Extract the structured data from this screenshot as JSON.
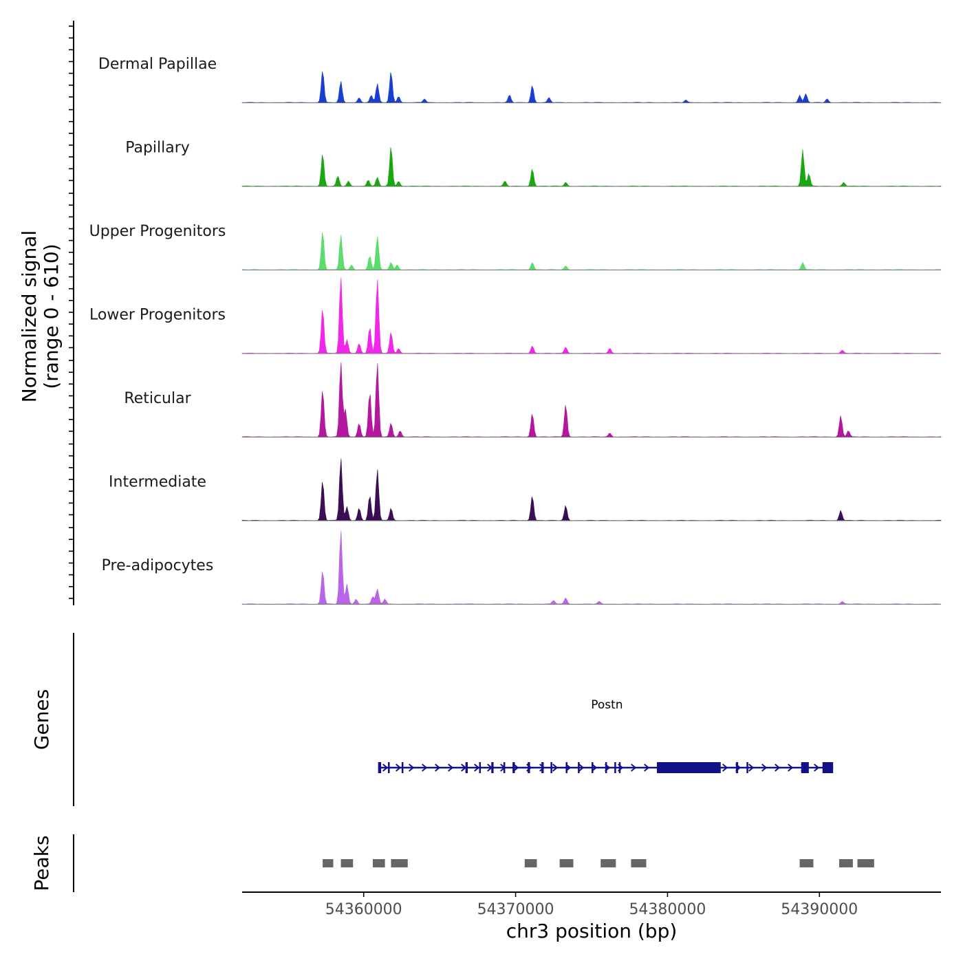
{
  "chart_data": {
    "type": "area",
    "title": "",
    "ylabel": "Normalized signal",
    "ylabel_range": "(range 0 - 610)",
    "ylim": [
      0,
      610
    ],
    "xlabel": "chr3 position (bp)",
    "xlim": [
      54352000,
      54398000
    ],
    "x_ticks": [
      54360000,
      54370000,
      54380000,
      54390000
    ],
    "x_tick_labels": [
      "54360000",
      "54370000",
      "54380000",
      "54390000"
    ],
    "genes_track_label": "Genes",
    "peaks_track_label": "Peaks",
    "series": [
      {
        "name": "Dermal Papillae",
        "color": "#1a3fcf",
        "peaks": [
          [
            54357300,
            260
          ],
          [
            54358500,
            170
          ],
          [
            54359700,
            40
          ],
          [
            54360500,
            60
          ],
          [
            54360900,
            150
          ],
          [
            54361800,
            250
          ],
          [
            54362300,
            50
          ],
          [
            54364000,
            30
          ],
          [
            54369600,
            60
          ],
          [
            54371100,
            140
          ],
          [
            54372200,
            40
          ],
          [
            54381200,
            20
          ],
          [
            54388700,
            60
          ],
          [
            54389100,
            70
          ],
          [
            54390500,
            30
          ]
        ]
      },
      {
        "name": "Papillary",
        "color": "#19a80f",
        "peaks": [
          [
            54357300,
            260
          ],
          [
            54358300,
            80
          ],
          [
            54359000,
            40
          ],
          [
            54360300,
            50
          ],
          [
            54360900,
            70
          ],
          [
            54361800,
            320
          ],
          [
            54362300,
            40
          ],
          [
            54369300,
            40
          ],
          [
            54371100,
            140
          ],
          [
            54373300,
            30
          ],
          [
            54388900,
            290
          ],
          [
            54389300,
            100
          ],
          [
            54391600,
            30
          ]
        ]
      },
      {
        "name": "Upper Progenitors",
        "color": "#5cdc6c",
        "peaks": [
          [
            54357300,
            310
          ],
          [
            54358500,
            280
          ],
          [
            54359200,
            40
          ],
          [
            54360400,
            110
          ],
          [
            54360900,
            270
          ],
          [
            54361800,
            60
          ],
          [
            54362200,
            40
          ],
          [
            54371100,
            60
          ],
          [
            54373300,
            30
          ],
          [
            54388900,
            60
          ]
        ]
      },
      {
        "name": "Lower Progenitors",
        "color": "#f026e8",
        "peaks": [
          [
            54357300,
            360
          ],
          [
            54358500,
            610
          ],
          [
            54358900,
            110
          ],
          [
            54359700,
            80
          ],
          [
            54360400,
            210
          ],
          [
            54360900,
            590
          ],
          [
            54361800,
            170
          ],
          [
            54362300,
            40
          ],
          [
            54371100,
            60
          ],
          [
            54373300,
            50
          ],
          [
            54376200,
            40
          ],
          [
            54391500,
            25
          ]
        ]
      },
      {
        "name": "Reticular",
        "color": "#b3179e",
        "peaks": [
          [
            54357300,
            380
          ],
          [
            54358500,
            600
          ],
          [
            54358800,
            220
          ],
          [
            54359700,
            110
          ],
          [
            54360400,
            360
          ],
          [
            54360900,
            590
          ],
          [
            54361800,
            110
          ],
          [
            54362400,
            50
          ],
          [
            54371100,
            190
          ],
          [
            54373300,
            260
          ],
          [
            54376200,
            30
          ],
          [
            54391400,
            170
          ],
          [
            54391900,
            50
          ]
        ]
      },
      {
        "name": "Intermediate",
        "color": "#3b0e54",
        "peaks": [
          [
            54357300,
            320
          ],
          [
            54358500,
            500
          ],
          [
            54358900,
            110
          ],
          [
            54359700,
            100
          ],
          [
            54360400,
            200
          ],
          [
            54360900,
            410
          ],
          [
            54361800,
            100
          ],
          [
            54371100,
            200
          ],
          [
            54373300,
            120
          ],
          [
            54391400,
            80
          ]
        ]
      },
      {
        "name": "Pre-adipocytes",
        "color": "#b865e8",
        "peaks": [
          [
            54357300,
            270
          ],
          [
            54358500,
            590
          ],
          [
            54358900,
            160
          ],
          [
            54359500,
            40
          ],
          [
            54360600,
            60
          ],
          [
            54360900,
            120
          ],
          [
            54361400,
            40
          ],
          [
            54372500,
            30
          ],
          [
            54373300,
            50
          ],
          [
            54375500,
            20
          ],
          [
            54391500,
            20
          ]
        ]
      }
    ],
    "gene": {
      "name": "Postn",
      "color": "#131187",
      "start": 54360950,
      "end": 54390900,
      "strand": "+",
      "exons": [
        [
          54360950,
          54361150
        ],
        [
          54361600,
          54361700
        ],
        [
          54362500,
          54362600
        ],
        [
          54366700,
          54366850
        ],
        [
          54367600,
          54367700
        ],
        [
          54368400,
          54368550
        ],
        [
          54369200,
          54369300
        ],
        [
          54369800,
          54369950
        ],
        [
          54370800,
          54370950
        ],
        [
          54371700,
          54371850
        ],
        [
          54372300,
          54372400
        ],
        [
          54373300,
          54373400
        ],
        [
          54374100,
          54374200
        ],
        [
          54375000,
          54375100
        ],
        [
          54375900,
          54376000
        ],
        [
          54376500,
          54376600
        ],
        [
          54376800,
          54376900
        ],
        [
          54379300,
          54383500
        ],
        [
          54384500,
          54384650
        ],
        [
          54385200,
          54385300
        ],
        [
          54388800,
          54389300
        ],
        [
          54390200,
          54390900
        ]
      ]
    },
    "peaks": [
      [
        54357300,
        54358000
      ],
      [
        54358500,
        54359300
      ],
      [
        54360600,
        54361400
      ],
      [
        54361800,
        54362900
      ],
      [
        54370600,
        54371400
      ],
      [
        54372900,
        54373800
      ],
      [
        54375600,
        54376600
      ],
      [
        54377600,
        54378600
      ],
      [
        54388700,
        54389600
      ],
      [
        54391300,
        54392200
      ],
      [
        54392500,
        54393600
      ]
    ]
  }
}
